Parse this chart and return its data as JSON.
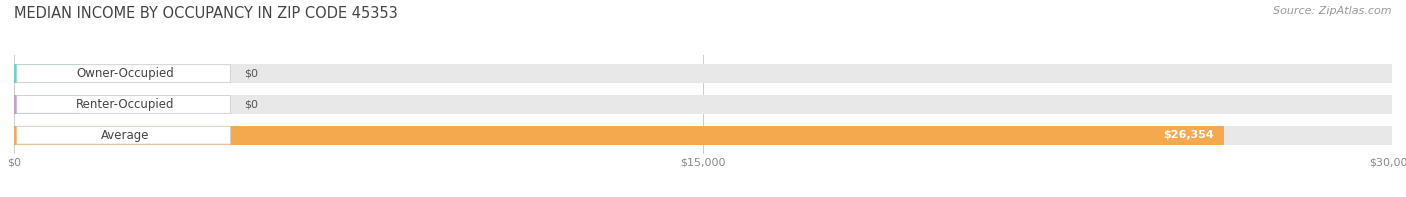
{
  "title": "MEDIAN INCOME BY OCCUPANCY IN ZIP CODE 45353",
  "source": "Source: ZipAtlas.com",
  "categories": [
    "Owner-Occupied",
    "Renter-Occupied",
    "Average"
  ],
  "values": [
    0,
    0,
    26354
  ],
  "max_value": 30000,
  "bar_colors": [
    "#6ecfcf",
    "#c4a0cc",
    "#f5a94e"
  ],
  "bar_bg_color": "#e8e8e8",
  "value_labels": [
    "$0",
    "$0",
    "$26,354"
  ],
  "x_ticks": [
    0,
    15000,
    30000
  ],
  "x_tick_labels": [
    "$0",
    "$15,000",
    "$30,000"
  ],
  "fig_width": 14.06,
  "fig_height": 1.97,
  "bg_color": "#ffffff",
  "title_fontsize": 10.5,
  "tick_fontsize": 8,
  "source_fontsize": 8,
  "bar_label_fontsize": 8.5,
  "value_fontsize": 8
}
